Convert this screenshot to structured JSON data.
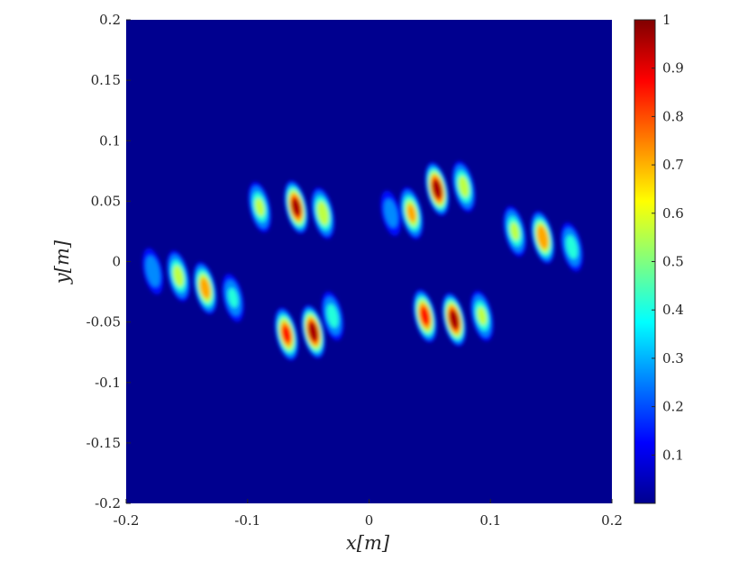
{
  "chart_data": {
    "type": "heatmap",
    "title": "",
    "xlabel": "x[m]",
    "ylabel": "y[m]",
    "xlim": [
      -0.2,
      0.2
    ],
    "ylim": [
      -0.2,
      0.2
    ],
    "x_ticks": [
      -0.2,
      -0.1,
      0,
      0.1,
      0.2
    ],
    "x_tick_labels": [
      "-0.2",
      "-0.1",
      "0",
      "0.1",
      "0.2"
    ],
    "y_ticks": [
      0.2,
      0.15,
      0.1,
      0.05,
      0,
      -0.05,
      -0.1,
      -0.15,
      -0.2
    ],
    "y_tick_labels": [
      "0.2",
      "0.15",
      "0.1",
      "0.05",
      "0",
      "-0.05",
      "-0.1",
      "-0.15",
      "-0.2"
    ],
    "colorbar": {
      "colormap": "jet",
      "range": [
        0,
        1
      ],
      "ticks": [
        1,
        0.9,
        0.8,
        0.7,
        0.6,
        0.5,
        0.4,
        0.3,
        0.2,
        0.1
      ],
      "tick_labels": [
        "1",
        "0.9",
        "0.8",
        "0.7",
        "0.6",
        "0.5",
        "0.4",
        "0.3",
        "0.2",
        "0.1"
      ]
    },
    "hotspots": [
      {
        "x": -0.157,
        "y": -0.012,
        "value": 0.55
      },
      {
        "x": -0.135,
        "y": -0.022,
        "value": 0.72
      },
      {
        "x": -0.112,
        "y": -0.03,
        "value": 0.35
      },
      {
        "x": -0.09,
        "y": 0.045,
        "value": 0.5
      },
      {
        "x": -0.068,
        "y": -0.06,
        "value": 0.82
      },
      {
        "x": -0.06,
        "y": 0.045,
        "value": 0.92
      },
      {
        "x": -0.046,
        "y": -0.058,
        "value": 0.95
      },
      {
        "x": -0.038,
        "y": 0.04,
        "value": 0.6
      },
      {
        "x": -0.03,
        "y": -0.045,
        "value": 0.4
      },
      {
        "x": 0.035,
        "y": 0.04,
        "value": 0.65
      },
      {
        "x": 0.046,
        "y": -0.045,
        "value": 0.85
      },
      {
        "x": 0.056,
        "y": 0.06,
        "value": 0.95
      },
      {
        "x": 0.07,
        "y": -0.048,
        "value": 0.95
      },
      {
        "x": 0.078,
        "y": 0.062,
        "value": 0.55
      },
      {
        "x": 0.093,
        "y": -0.045,
        "value": 0.5
      },
      {
        "x": 0.12,
        "y": 0.025,
        "value": 0.5
      },
      {
        "x": 0.143,
        "y": 0.02,
        "value": 0.78
      },
      {
        "x": 0.167,
        "y": 0.012,
        "value": 0.4
      },
      {
        "x": -0.178,
        "y": -0.008,
        "value": 0.28
      },
      {
        "x": 0.018,
        "y": 0.04,
        "value": 0.25
      }
    ]
  }
}
